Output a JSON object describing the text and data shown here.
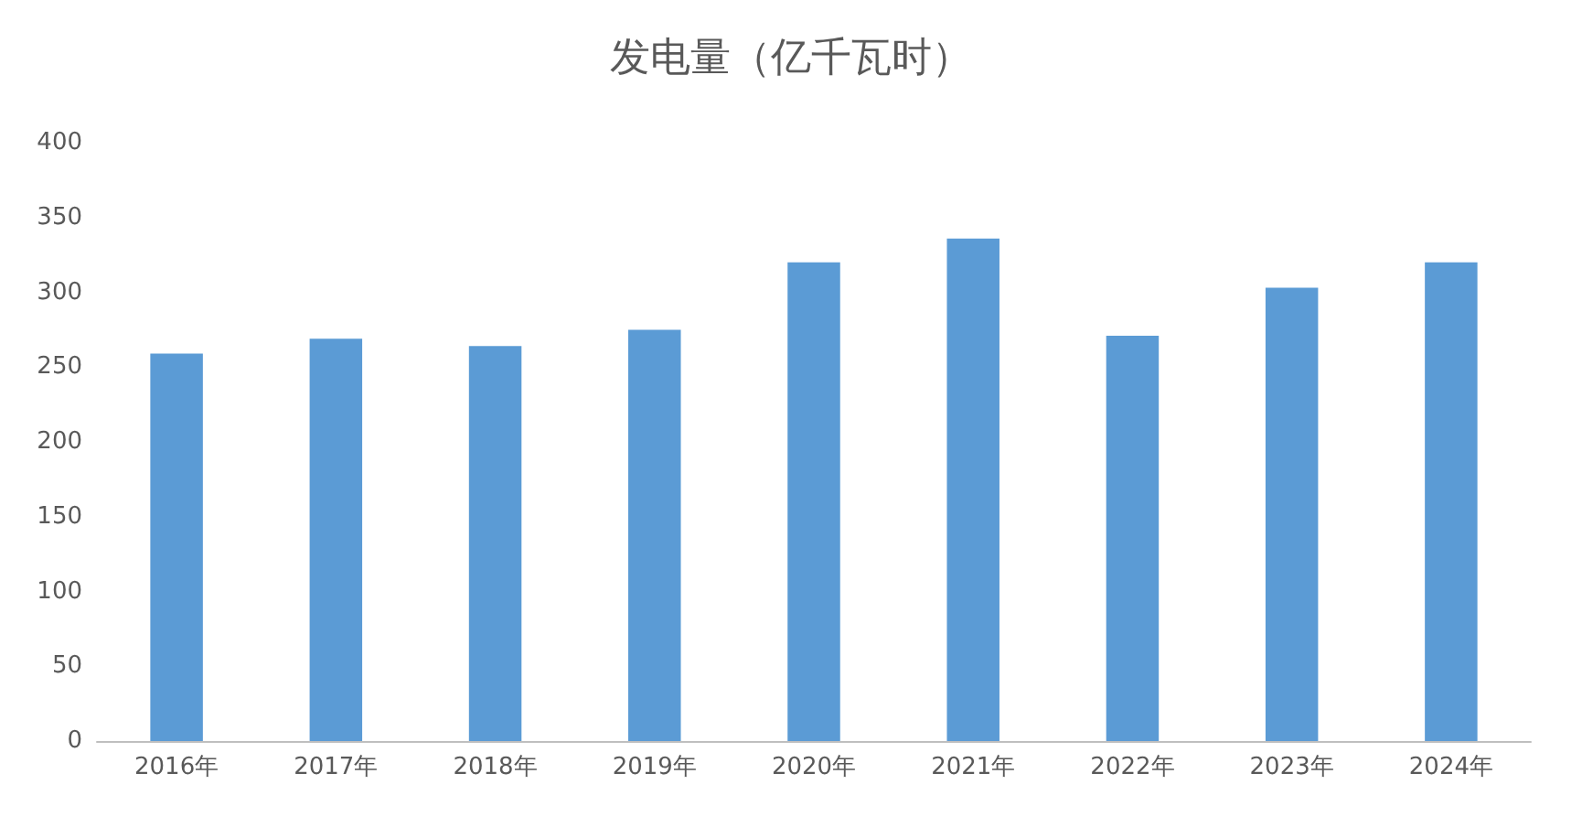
{
  "chart_data": {
    "type": "bar",
    "title": "发电量（亿千瓦时）",
    "categories": [
      "2016年",
      "2017年",
      "2018年",
      "2019年",
      "2020年",
      "2021年",
      "2022年",
      "2023年",
      "2024年"
    ],
    "values": [
      259,
      269,
      264,
      275,
      320,
      336,
      271,
      303,
      320
    ],
    "color": "#5b9bd5",
    "ylim": [
      0,
      400
    ],
    "yticks": [
      0,
      50,
      100,
      150,
      200,
      250,
      300,
      350,
      400
    ],
    "grid": false
  }
}
